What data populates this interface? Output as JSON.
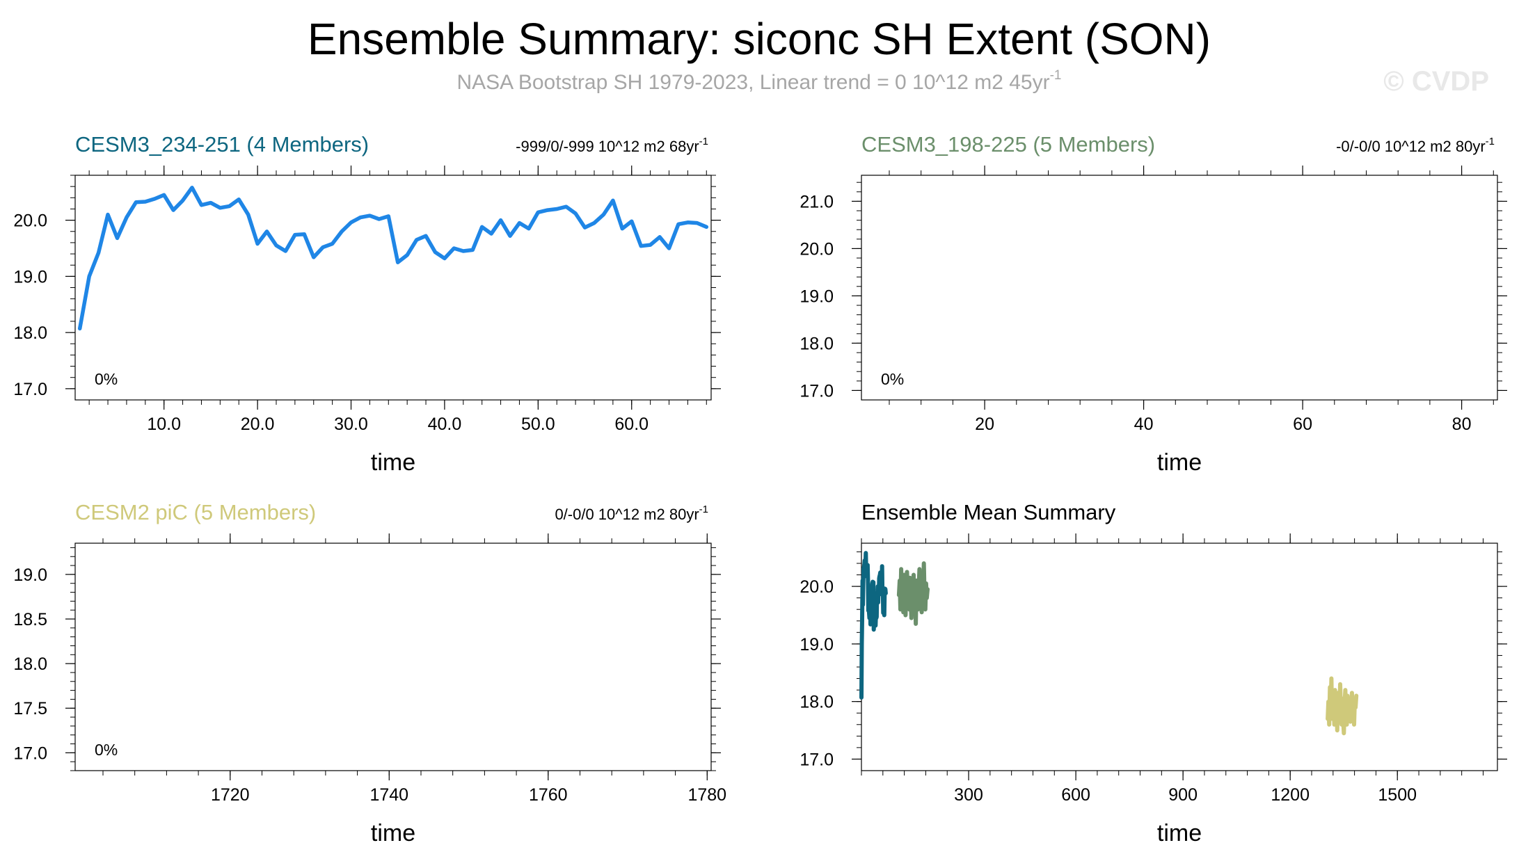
{
  "title": "Ensemble Summary: siconc SH Extent (SON)",
  "subtitle": "NASA Bootstrap SH 1979-2023, Linear trend = 0 10^12 m2 45yr",
  "subtitle_sup": "-1",
  "watermark": "© CVDP",
  "chart_data": [
    {
      "type": "line",
      "title": "CESM3_234-251 (4 Members)",
      "title_color": "#0d6680",
      "trend_text": "-999/0/-999 10^12 m2 68yr",
      "trend_sup": "-1",
      "percent_label": "0%",
      "xlabel": "time",
      "xlim": [
        0.5,
        68.5
      ],
      "ylim": [
        16.8,
        20.8
      ],
      "xticks": [
        10,
        20,
        30,
        40,
        50,
        60
      ],
      "xtick_labels": [
        "10.0",
        "20.0",
        "30.0",
        "40.0",
        "50.0",
        "60.0"
      ],
      "yticks": [
        17,
        18,
        19,
        20
      ],
      "ytick_labels": [
        "17.0",
        "18.0",
        "19.0",
        "20.0"
      ],
      "series": [
        {
          "name": "CESM3_234-251 ensemble mean",
          "color": "#1f86e6",
          "x": [
            1,
            2,
            3,
            4,
            5,
            6,
            7,
            8,
            9,
            10,
            11,
            12,
            13,
            14,
            15,
            16,
            17,
            18,
            19,
            20,
            21,
            22,
            23,
            24,
            25,
            26,
            27,
            28,
            29,
            30,
            31,
            32,
            33,
            34,
            35,
            36,
            37,
            38,
            39,
            40,
            41,
            42,
            43,
            44,
            45,
            46,
            47,
            48,
            49,
            50,
            51,
            52,
            53,
            54,
            55,
            56,
            57,
            58,
            59,
            60,
            61,
            62,
            63,
            64,
            65,
            66,
            67,
            68
          ],
          "values": [
            18.07,
            19.0,
            19.42,
            20.1,
            19.68,
            20.05,
            20.32,
            20.33,
            20.38,
            20.45,
            20.18,
            20.35,
            20.58,
            20.27,
            20.31,
            20.22,
            20.25,
            20.37,
            20.1,
            19.58,
            19.8,
            19.55,
            19.45,
            19.74,
            19.75,
            19.34,
            19.52,
            19.58,
            19.8,
            19.96,
            20.05,
            20.08,
            20.02,
            20.07,
            19.25,
            19.38,
            19.65,
            19.72,
            19.43,
            19.32,
            19.5,
            19.45,
            19.47,
            19.88,
            19.76,
            20.0,
            19.72,
            19.95,
            19.85,
            20.14,
            20.18,
            20.2,
            20.24,
            20.12,
            19.87,
            19.95,
            20.1,
            20.35,
            19.85,
            19.98,
            19.54,
            19.56,
            19.7,
            19.5,
            19.93,
            19.96,
            19.95,
            19.88
          ]
        }
      ]
    },
    {
      "type": "line",
      "title": "CESM3_198-225 (5 Members)",
      "title_color": "#6b8f6b",
      "trend_text": "-0/-0/0 10^12 m2 80yr",
      "trend_sup": "-1",
      "percent_label": "0%",
      "xlabel": "time",
      "xlim": [
        4.5,
        84.5
      ],
      "ylim": [
        16.8,
        21.55
      ],
      "xticks": [
        20,
        40,
        60,
        80
      ],
      "xtick_labels": [
        "20",
        "40",
        "60",
        "80"
      ],
      "yticks": [
        17,
        18,
        19,
        20,
        21
      ],
      "ytick_labels": [
        "17.0",
        "18.0",
        "19.0",
        "20.0",
        "21.0"
      ],
      "series": []
    },
    {
      "type": "line",
      "title": "CESM2 piC (5 Members)",
      "title_color": "#cfc97a",
      "trend_text": "0/-0/0 10^12 m2 80yr",
      "trend_sup": "-1",
      "percent_label": "0%",
      "xlabel": "time",
      "xlim": [
        1700.5,
        1780.5
      ],
      "ylim": [
        16.8,
        19.35
      ],
      "xticks": [
        1720,
        1740,
        1760,
        1780
      ],
      "xtick_labels": [
        "1720",
        "1740",
        "1760",
        "1780"
      ],
      "yticks": [
        17.0,
        17.5,
        18.0,
        18.5,
        19.0
      ],
      "ytick_labels": [
        "17.0",
        "17.5",
        "18.0",
        "18.5",
        "19.0"
      ],
      "series": []
    },
    {
      "type": "line",
      "title": "Ensemble Mean Summary",
      "title_color": "#000000",
      "xlabel": "time",
      "xlim": [
        0,
        1780
      ],
      "ylim": [
        16.8,
        20.75
      ],
      "xticks": [
        300,
        600,
        900,
        1200,
        1500
      ],
      "xtick_labels": [
        "300",
        "600",
        "900",
        "1200",
        "1500"
      ],
      "yticks": [
        17,
        18,
        19,
        20
      ],
      "ytick_labels": [
        "17.0",
        "18.0",
        "19.0",
        "20.0"
      ],
      "series": [
        {
          "name": "CESM3_234-251",
          "color": "#0d6680",
          "x_start": 0,
          "x_end": 68,
          "values": [
            18.07,
            19.0,
            19.42,
            20.1,
            19.68,
            20.05,
            20.32,
            20.33,
            20.38,
            20.45,
            20.18,
            20.35,
            20.58,
            20.27,
            20.31,
            20.22,
            20.25,
            20.37,
            20.1,
            19.58,
            19.8,
            19.55,
            19.45,
            19.74,
            19.75,
            19.34,
            19.52,
            19.58,
            19.8,
            19.96,
            20.05,
            20.08,
            20.02,
            20.07,
            19.25,
            19.38,
            19.65,
            19.72,
            19.43,
            19.32,
            19.5,
            19.45,
            19.47,
            19.88,
            19.76,
            20.0,
            19.72,
            19.95,
            19.85,
            20.14,
            20.18,
            20.2,
            20.24,
            20.12,
            19.87,
            19.95,
            20.1,
            20.35,
            19.85,
            19.98,
            19.54,
            19.56,
            19.7,
            19.5,
            19.93,
            19.96,
            19.95,
            19.88
          ]
        },
        {
          "name": "CESM3_198-225",
          "color": "#6b8f6b",
          "x_start": 105,
          "x_end": 185,
          "values": [
            19.85,
            20.1,
            19.6,
            20.3,
            19.7,
            19.95,
            19.55,
            20.2,
            19.8,
            19.5,
            20.0,
            20.25,
            19.7,
            19.9,
            19.6,
            20.15,
            19.8,
            19.45,
            20.05,
            19.75,
            20.2,
            19.65,
            19.95,
            19.35,
            20.1,
            19.8,
            19.6,
            20.0,
            20.3,
            19.7,
            19.9,
            19.55,
            20.15,
            19.85,
            20.4,
            19.75,
            19.6,
            20.05,
            19.8,
            19.95
          ]
        },
        {
          "name": "CESM2 piC",
          "color": "#cfc97a",
          "x_start": 1305,
          "x_end": 1385,
          "values": [
            17.7,
            18.0,
            17.6,
            18.25,
            17.8,
            18.4,
            17.7,
            17.95,
            18.1,
            17.6,
            18.2,
            17.75,
            17.9,
            17.5,
            18.15,
            17.85,
            17.65,
            18.3,
            17.8,
            17.6,
            18.05,
            17.7,
            17.45,
            17.95,
            18.2,
            17.75,
            17.6,
            18.1,
            17.85,
            17.7,
            18.0,
            17.65,
            17.9,
            18.15,
            17.75,
            17.8,
            17.6,
            18.05,
            17.9,
            18.1
          ]
        }
      ]
    }
  ]
}
